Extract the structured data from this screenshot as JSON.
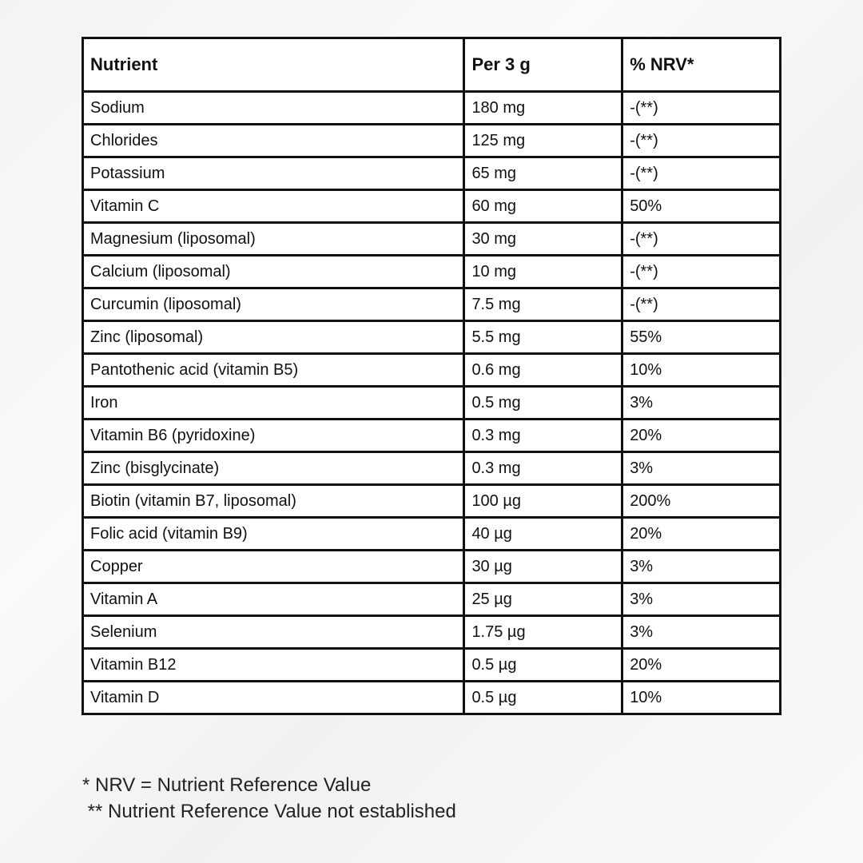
{
  "table": {
    "headers": [
      "Nutrient",
      "Per 3 g",
      "% NRV*"
    ],
    "rows": [
      [
        "Sodium",
        "180 mg",
        "-(**)"
      ],
      [
        "Chlorides",
        "125 mg",
        "-(**)"
      ],
      [
        "Potassium",
        "65 mg",
        "-(**)"
      ],
      [
        "Vitamin C",
        "60 mg",
        "50%"
      ],
      [
        "Magnesium (liposomal)",
        "30 mg",
        "-(**)"
      ],
      [
        "Calcium (liposomal)",
        "10 mg",
        "-(**)"
      ],
      [
        "Curcumin (liposomal)",
        "7.5 mg",
        "-(**)"
      ],
      [
        "Zinc (liposomal)",
        "5.5 mg",
        "55%"
      ],
      [
        "Pantothenic acid (vitamin B5)",
        "0.6 mg",
        "10%"
      ],
      [
        "Iron",
        "0.5 mg",
        "3%"
      ],
      [
        "Vitamin B6 (pyridoxine)",
        "0.3 mg",
        "20%"
      ],
      [
        "Zinc (bisglycinate)",
        "0.3 mg",
        "3%"
      ],
      [
        "Biotin (vitamin B7, liposomal)",
        "100 µg",
        "200%"
      ],
      [
        "Folic acid (vitamin B9)",
        "40 µg",
        "20%"
      ],
      [
        "Copper",
        "30 µg",
        "3%"
      ],
      [
        "Vitamin A",
        "25 µg",
        "3%"
      ],
      [
        "Selenium",
        "1.75 µg",
        "3%"
      ],
      [
        "Vitamin B12",
        "0.5 µg",
        "20%"
      ],
      [
        "Vitamin D",
        "0.5 µg",
        "10%"
      ]
    ]
  },
  "footnotes": {
    "nrv": "* NRV = Nutrient Reference Value",
    "not_established": " ** Nutrient Reference Value not established"
  }
}
